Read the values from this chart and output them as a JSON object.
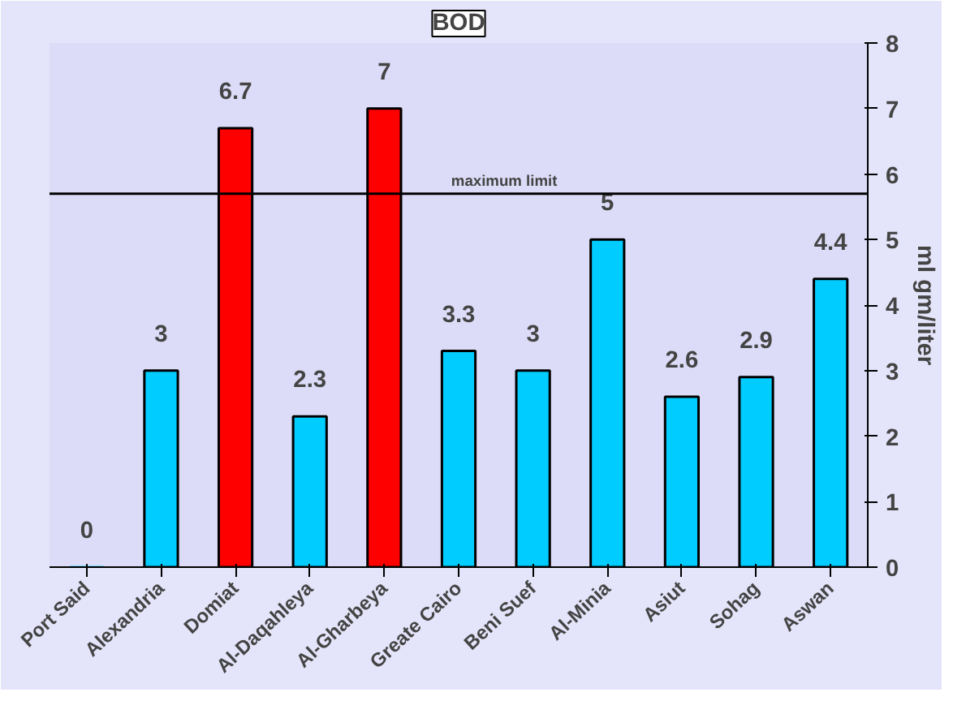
{
  "chart_data": {
    "type": "bar",
    "title": "BOD",
    "ylabel": "ml gm/liter",
    "categories": [
      "Port Said",
      "Alexandria",
      "Domiat",
      "Al-Daqahleya",
      "Al-Gharbeya",
      "Greate Cairo",
      "Beni Suef",
      "Al-Minia",
      "Asiut",
      "Sohag",
      "Aswan"
    ],
    "values": [
      0,
      3,
      6.7,
      2.3,
      7,
      3.3,
      3,
      5,
      2.6,
      2.9,
      4.4
    ],
    "colors": [
      "#00ccff",
      "#00ccff",
      "#ff0000",
      "#00ccff",
      "#ff0000",
      "#00ccff",
      "#00ccff",
      "#00ccff",
      "#00ccff",
      "#00ccff",
      "#00ccff"
    ],
    "ylim": [
      0,
      8
    ],
    "yticks": [
      0,
      1,
      2,
      3,
      4,
      5,
      6,
      7,
      8
    ],
    "ref_lines": [
      {
        "axis": "y",
        "value": 5.7,
        "label": "maximum limit",
        "color": "#000000"
      }
    ],
    "data_labels": true,
    "grid": false
  }
}
